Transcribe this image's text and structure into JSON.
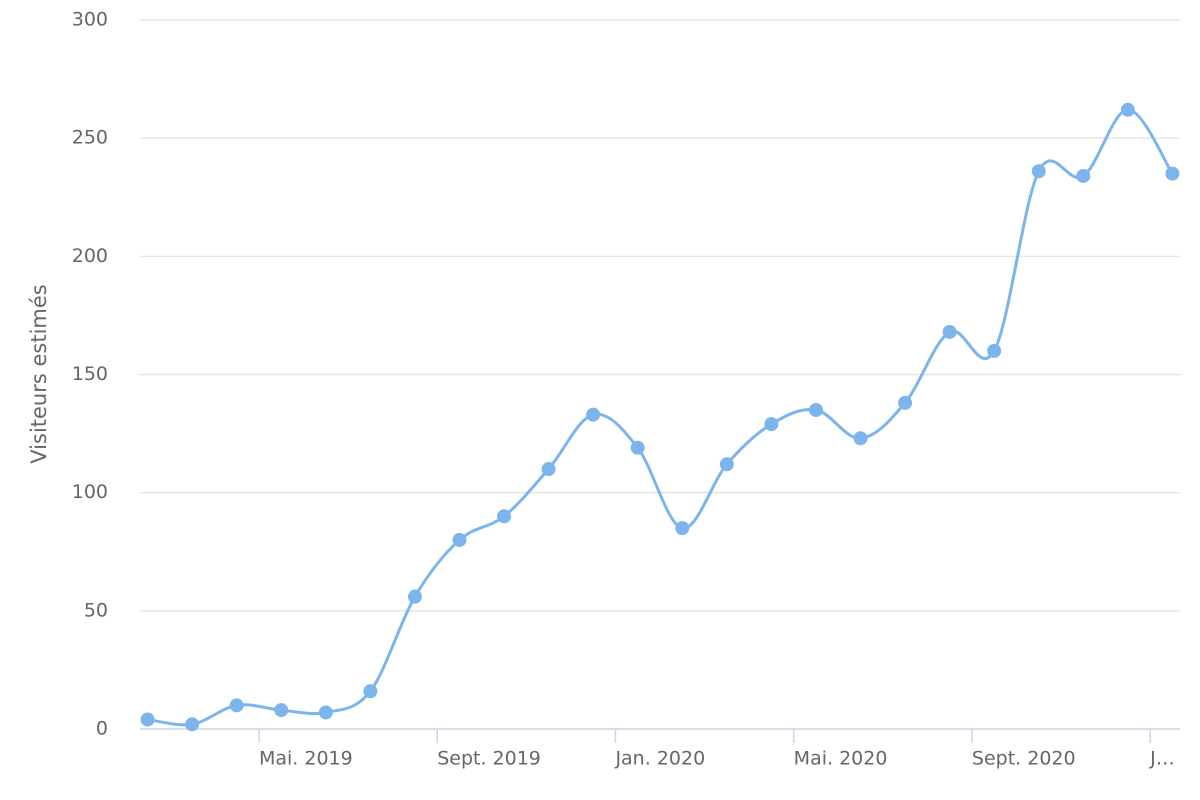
{
  "chart_data": {
    "type": "line",
    "y_label": "Visiteurs estimés",
    "x": [
      1.5,
      2.5,
      3.5,
      4.5,
      5.5,
      6.5,
      7.5,
      8.5,
      9.5,
      10.5,
      11.5,
      12.5,
      13.5,
      14.5,
      15.5,
      16.5,
      17.5,
      18.5,
      19.5,
      20.5,
      21.5,
      22.5,
      23.5,
      24.5
    ],
    "series": [
      {
        "color": "#7cb5ec",
        "values": [
          4,
          2,
          10,
          8,
          7,
          16,
          56,
          80,
          90,
          110,
          133,
          119,
          85,
          112,
          129,
          135,
          123,
          138,
          168,
          160,
          236,
          234,
          262,
          235
        ]
      }
    ],
    "xlim": [
      1.33,
      24.67
    ],
    "xticks": [
      {
        "value": 4,
        "label": "Mai. 2019"
      },
      {
        "value": 8,
        "label": "Sept. 2019"
      },
      {
        "value": 12,
        "label": "Jan. 2020"
      },
      {
        "value": 16,
        "label": "Mai. 2020"
      },
      {
        "value": 20,
        "label": "Sept. 2020"
      },
      {
        "value": 24,
        "label": "J…"
      }
    ],
    "ylim": [
      0,
      300
    ],
    "yticks": [
      0,
      50,
      100,
      150,
      200,
      250,
      300
    ],
    "grid": true
  }
}
